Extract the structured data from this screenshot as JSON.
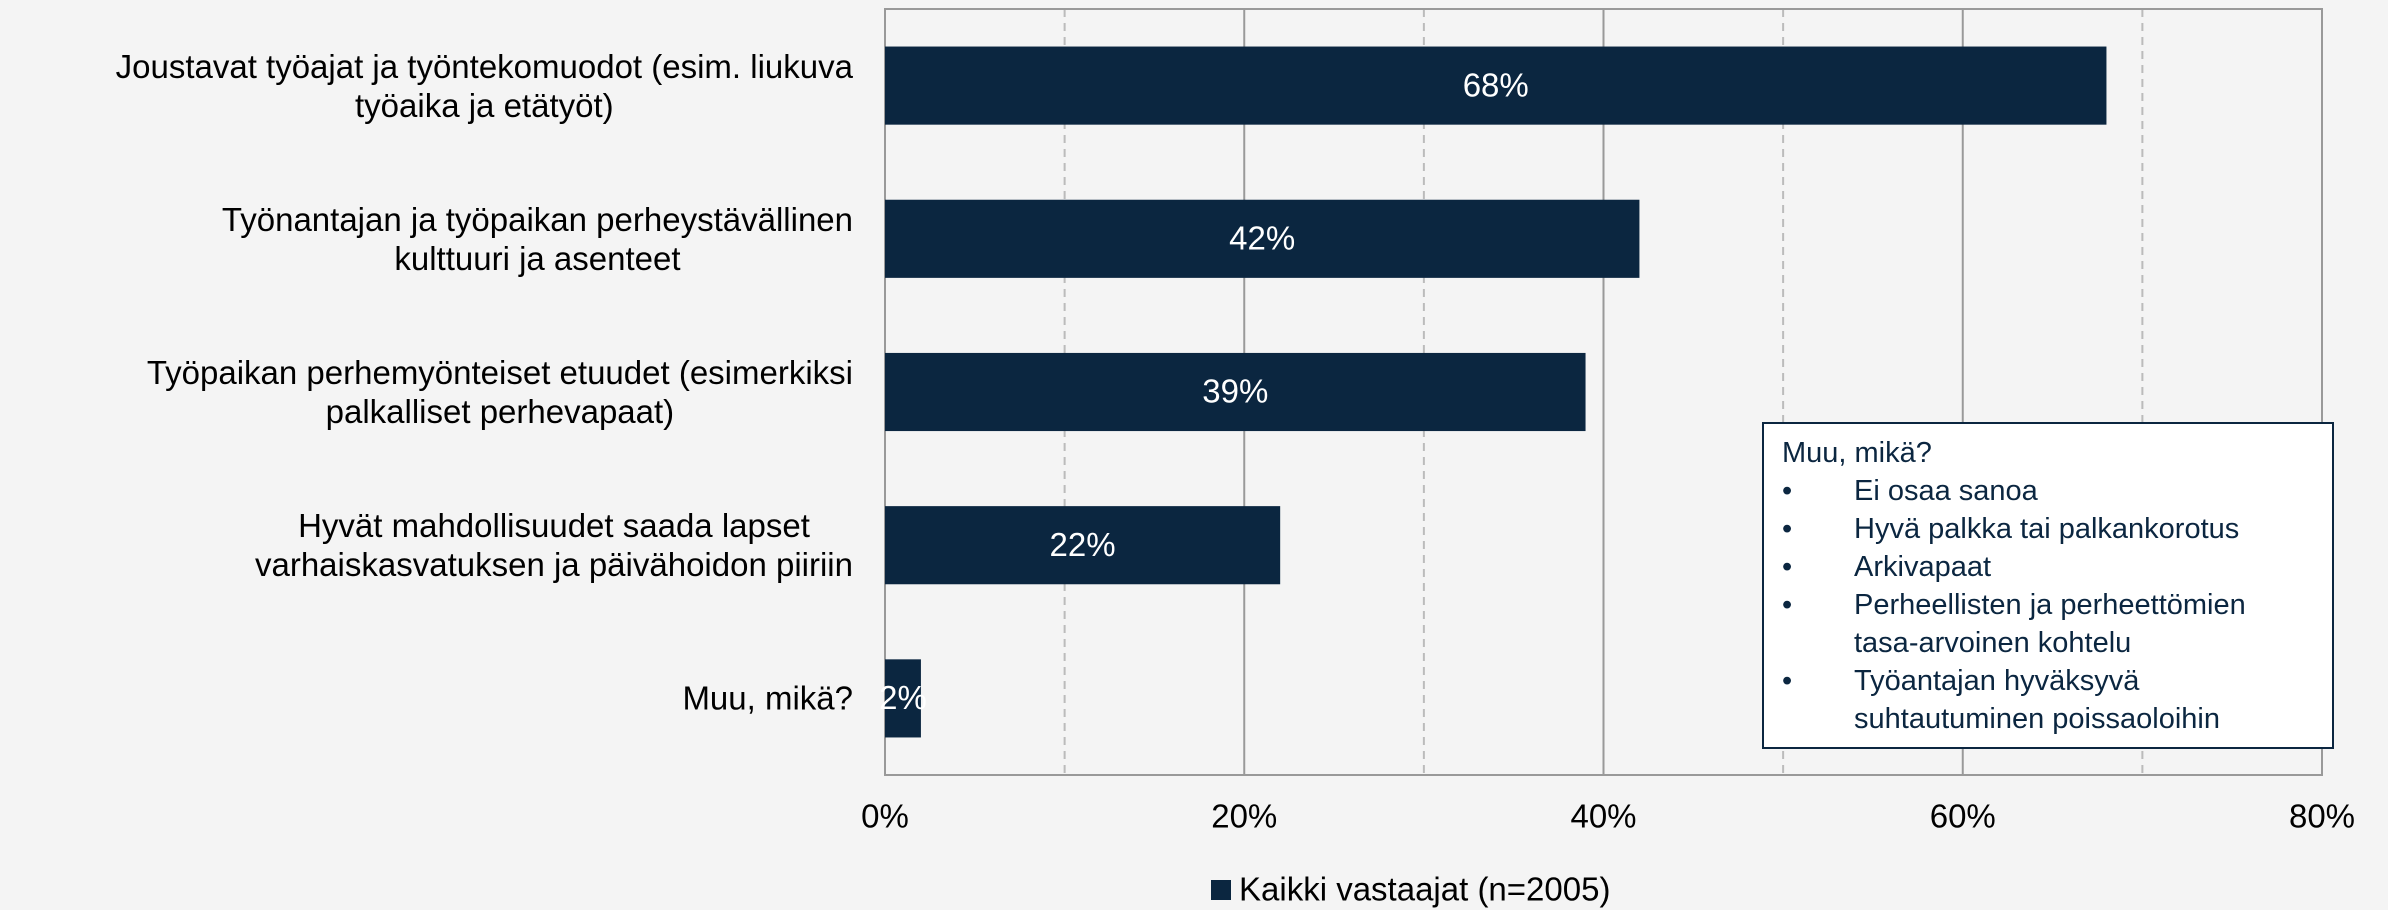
{
  "chart_data": {
    "type": "bar",
    "orientation": "horizontal",
    "categories": [
      "Joustavat työajat ja työntekomuodot (esim. liukuva\ntyöaika ja etätyöt)",
      "Työnantajan ja työpaikan perheystävällinen\nkulttuuri ja asenteet",
      "Työpaikan perhemyönteiset etuudet (esimerkiksi\npalkalliset perhevapaat)",
      "Hyvät mahdollisuudet saada lapset\nvarhaiskasvatuksen ja päivähoidon piiriin",
      "Muu, mikä?"
    ],
    "series": [
      {
        "name": "Kaikki vastaajat (n=2005)",
        "color": "#0b2640",
        "values": [
          68,
          42,
          39,
          22,
          2
        ],
        "value_labels": [
          "68%",
          "42%",
          "39%",
          "22%",
          "2%"
        ]
      }
    ],
    "xlim": [
      0,
      80
    ],
    "xticks": [
      {
        "value": 0,
        "label": "0%"
      },
      {
        "value": 20,
        "label": "20%"
      },
      {
        "value": 40,
        "label": "40%"
      },
      {
        "value": 60,
        "label": "60%"
      },
      {
        "value": 80,
        "label": "80%"
      }
    ],
    "minor_xticks": [
      10,
      30,
      50,
      70
    ],
    "grid": true,
    "legend": "bottom",
    "annotation": {
      "title": "Muu, mikä?",
      "items": [
        "Ei osaa sanoa",
        "Hyvä palkka tai palkankorotus",
        "Arkivapaat",
        "Perheellisten ja perheettömien\ntasa-arvoinen kohtelu",
        "Työantajan hyväksyvä\nsuhtautuminen poissaoloihin"
      ]
    }
  }
}
